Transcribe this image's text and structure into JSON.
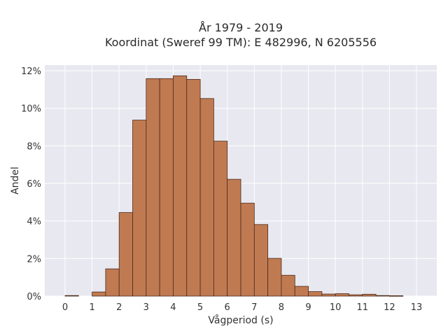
{
  "chart_data": {
    "type": "bar",
    "title_line1": "År 1979 - 2019",
    "title_line2": "Koordinat (Sweref 99 TM): E 482996, N 6205556",
    "xlabel": "Vågperiod (s)",
    "ylabel": "Andel",
    "xlim": [
      -0.75,
      13.75
    ],
    "ylim": [
      0,
      0.123
    ],
    "x_ticks": [
      "0",
      "1",
      "2",
      "3",
      "4",
      "5",
      "6",
      "7",
      "8",
      "9",
      "10",
      "11",
      "12",
      "13"
    ],
    "y_ticks": [
      "0%",
      "2%",
      "4%",
      "6%",
      "8%",
      "10%",
      "12%"
    ],
    "bin_width": 0.5,
    "bins": [
      {
        "start": 0.0,
        "value": 0.0003
      },
      {
        "start": 1.0,
        "value": 0.0022
      },
      {
        "start": 1.5,
        "value": 0.0145
      },
      {
        "start": 2.0,
        "value": 0.0445
      },
      {
        "start": 2.5,
        "value": 0.0937
      },
      {
        "start": 3.0,
        "value": 0.1158
      },
      {
        "start": 3.5,
        "value": 0.1158
      },
      {
        "start": 4.0,
        "value": 0.1173
      },
      {
        "start": 4.5,
        "value": 0.1154
      },
      {
        "start": 5.0,
        "value": 0.1052
      },
      {
        "start": 5.5,
        "value": 0.0825
      },
      {
        "start": 6.0,
        "value": 0.0622
      },
      {
        "start": 6.5,
        "value": 0.0495
      },
      {
        "start": 7.0,
        "value": 0.0381
      },
      {
        "start": 7.5,
        "value": 0.0201
      },
      {
        "start": 8.0,
        "value": 0.0111
      },
      {
        "start": 8.5,
        "value": 0.0052
      },
      {
        "start": 9.0,
        "value": 0.0024
      },
      {
        "start": 9.5,
        "value": 0.0011
      },
      {
        "start": 10.0,
        "value": 0.0013
      },
      {
        "start": 10.5,
        "value": 0.0007
      },
      {
        "start": 11.0,
        "value": 0.001
      },
      {
        "start": 11.5,
        "value": 0.0003
      },
      {
        "start": 12.0,
        "value": 0.0002
      }
    ],
    "grid": true,
    "colors": {
      "bar_fill": "#c07a52",
      "bar_edge": "#4a2a18",
      "plot_bg": "#e8e8f0",
      "grid": "#ffffff"
    }
  }
}
